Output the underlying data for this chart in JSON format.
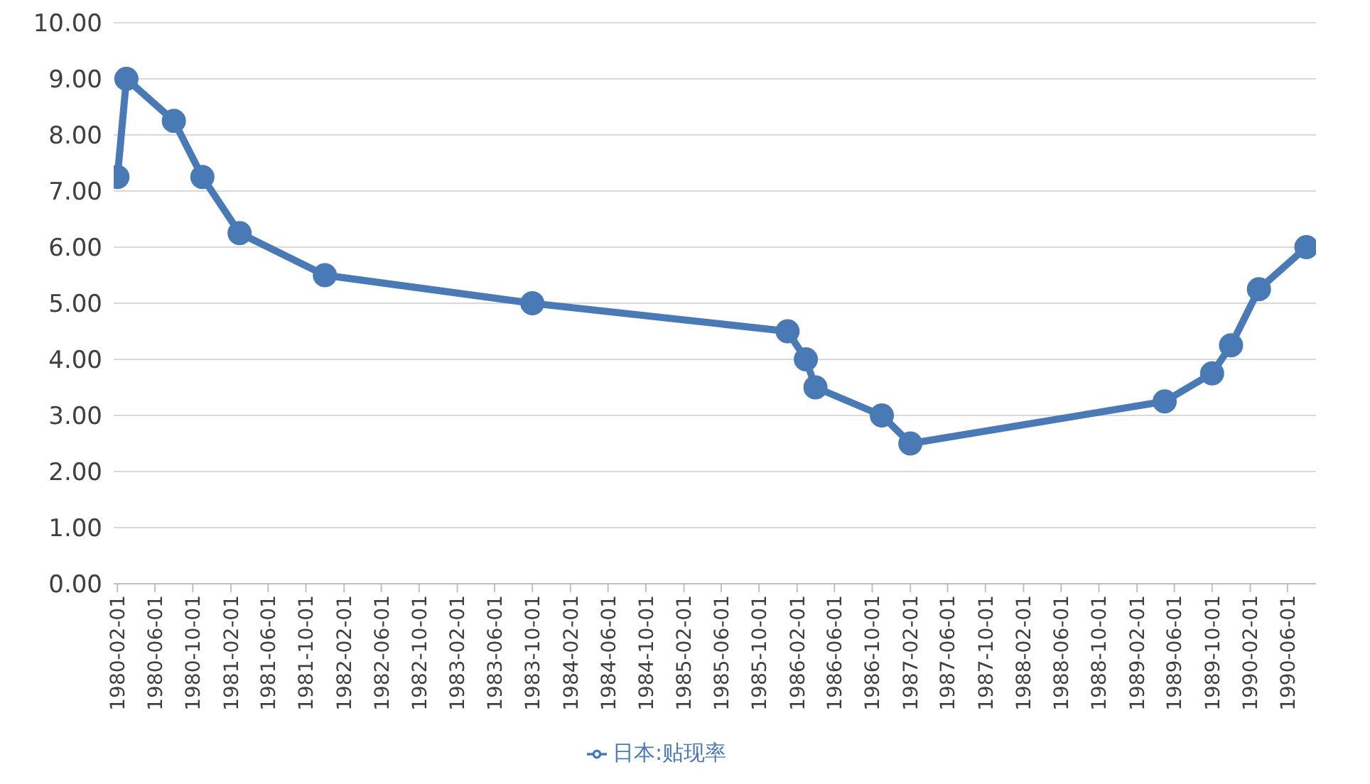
{
  "chart_data": {
    "type": "line",
    "x": [
      "1980-02-01",
      "1980-03-01",
      "1980-08-01",
      "1980-11-01",
      "1981-03-01",
      "1981-12-01",
      "1983-10-01",
      "1986-01-01",
      "1986-03-01",
      "1986-04-01",
      "1986-11-01",
      "1987-02-01",
      "1989-05-01",
      "1989-10-01",
      "1989-12-01",
      "1990-03-01",
      "1990-08-01"
    ],
    "series": [
      {
        "name": "日本:贴现率",
        "color": "#4a7ab5",
        "values": [
          7.25,
          9.0,
          8.25,
          7.25,
          6.25,
          5.5,
          5.0,
          4.5,
          4.0,
          3.5,
          3.0,
          2.5,
          3.25,
          3.75,
          4.25,
          5.25,
          6.0
        ]
      }
    ],
    "xlim": [
      "1980-01-20",
      "1990-09-01"
    ],
    "xticks": [
      "1980-02-01",
      "1980-06-01",
      "1980-10-01",
      "1981-02-01",
      "1981-06-01",
      "1981-10-01",
      "1982-02-01",
      "1982-06-01",
      "1982-10-01",
      "1983-02-01",
      "1983-06-01",
      "1983-10-01",
      "1984-02-01",
      "1984-06-01",
      "1984-10-01",
      "1985-02-01",
      "1985-06-01",
      "1985-10-01",
      "1986-02-01",
      "1986-06-01",
      "1986-10-01",
      "1987-02-01",
      "1987-06-01",
      "1987-10-01",
      "1988-02-01",
      "1988-06-01",
      "1988-10-01",
      "1989-02-01",
      "1989-06-01",
      "1989-10-01",
      "1990-02-01",
      "1990-06-01"
    ],
    "ylim": [
      0,
      10
    ],
    "yticks": [
      {
        "value": 0,
        "label": "0.00"
      },
      {
        "value": 1,
        "label": "1.00"
      },
      {
        "value": 2,
        "label": "2.00"
      },
      {
        "value": 3,
        "label": "3.00"
      },
      {
        "value": 4,
        "label": "4.00"
      },
      {
        "value": 5,
        "label": "5.00"
      },
      {
        "value": 6,
        "label": "6.00"
      },
      {
        "value": 7,
        "label": "7.00"
      },
      {
        "value": 8,
        "label": "8.00"
      },
      {
        "value": 9,
        "label": "9.00"
      },
      {
        "value": 10,
        "label": "10.00"
      }
    ],
    "grid": "y",
    "legend": "bottom",
    "marker": "circle",
    "line_style": "solid"
  }
}
